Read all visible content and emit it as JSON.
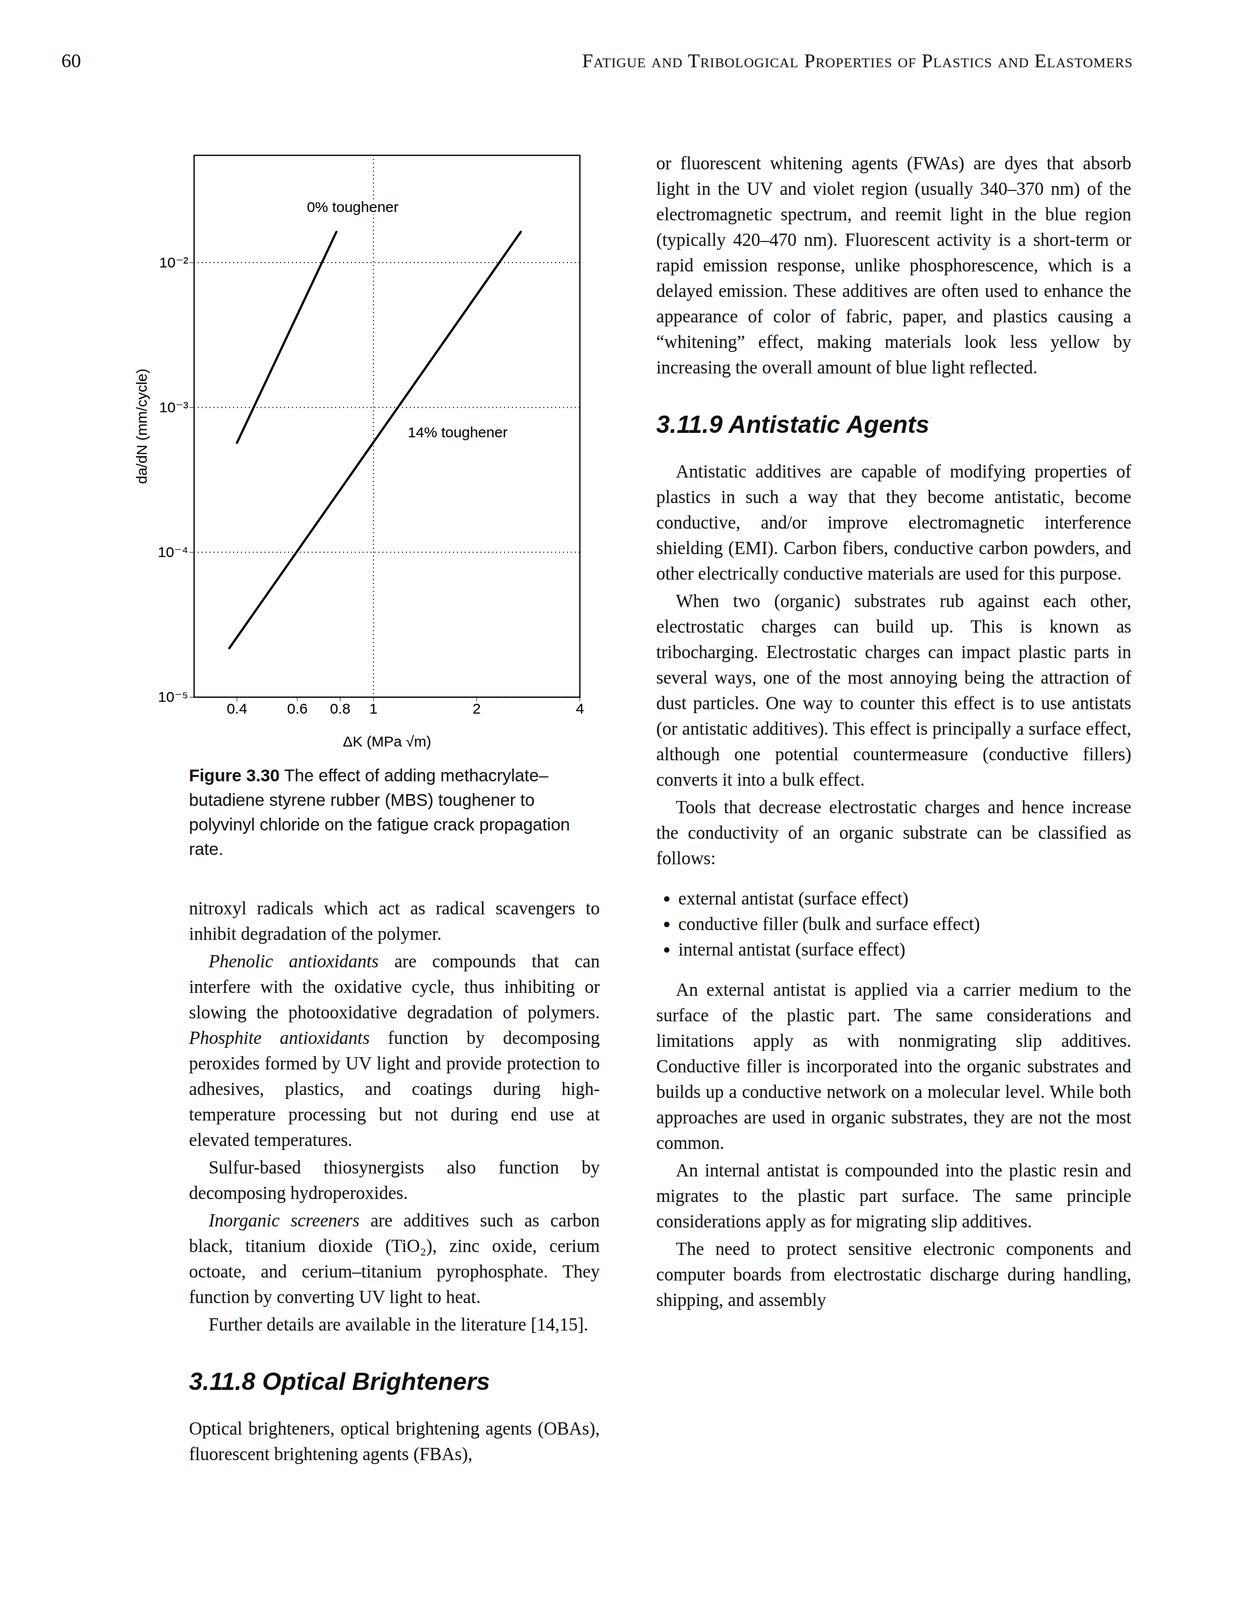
{
  "header": {
    "page_number": "60",
    "running_title": "Fatigue and Tribological Properties of Plastics and Elastomers"
  },
  "figure": {
    "label": "Figure 3.30",
    "caption": "The effect of adding methacrylate–butadiene styrene rubber (MBS) toughener to polyvinyl chloride on the fatigue crack propagation rate."
  },
  "chart_data": {
    "type": "line",
    "xlabel": "ΔK (MPa √m)",
    "ylabel": "da/dN (mm/cycle)",
    "log": true,
    "grid": "y",
    "vlines": [
      1
    ],
    "xlim": [
      0.3,
      4
    ],
    "xticks": [
      0.4,
      0.6,
      0.8,
      1,
      2,
      4
    ],
    "ylim": [
      1e-05,
      0.055
    ],
    "yticks": [
      {
        "value": 1e-05,
        "label": "10⁻⁵"
      },
      {
        "value": 0.0001,
        "label": "10⁻⁴"
      },
      {
        "value": 0.001,
        "label": "10⁻³"
      },
      {
        "value": 0.01,
        "label": "10⁻²"
      }
    ],
    "series": [
      {
        "name": "0% toughener",
        "color": "#000000",
        "x": [
          0.4,
          0.78
        ],
        "values": [
          0.00057,
          0.0163
        ]
      },
      {
        "name": "14% toughener",
        "color": "#000000",
        "x": [
          0.38,
          2.69
        ],
        "values": [
          2.18e-05,
          0.0163
        ]
      }
    ],
    "annotations": [
      {
        "text": "0% toughener",
        "x": 0.87,
        "y": 0.024
      },
      {
        "text": "14% toughener",
        "x": 1.76,
        "y": 0.00067
      }
    ]
  },
  "left_column": [
    {
      "type": "paragraph",
      "indent": false,
      "runs": [
        {
          "text": "nitroxyl radicals which act as radical scavengers to inhibit degradation of the polymer.",
          "italic": false
        }
      ]
    },
    {
      "type": "paragraph",
      "indent": true,
      "runs": [
        {
          "text": "Phenolic antioxidants",
          "italic": true
        },
        {
          "text": " are compounds that can interfere with the oxidative cycle, thus inhibiting or slowing the photooxidative degradation of polymers. ",
          "italic": false
        },
        {
          "text": "Phosphite antioxidants",
          "italic": true
        },
        {
          "text": " function by decomposing peroxides formed by UV light and provide protection to adhesives, plastics, and coatings during high-temperature processing but not during end use at elevated temperatures.",
          "italic": false
        }
      ]
    },
    {
      "type": "paragraph",
      "indent": true,
      "runs": [
        {
          "text": "Sulfur-based thiosynergists also function by decomposing hydroperoxides.",
          "italic": false
        }
      ]
    },
    {
      "type": "paragraph",
      "indent": true,
      "runs": [
        {
          "text": "Inorganic screeners",
          "italic": true
        },
        {
          "text": " are additives such as carbon black, titanium dioxide (TiO₂), zinc oxide, cerium octoate, and cerium–titanium pyrophosphate. They function by converting UV light to heat.",
          "italic": false
        }
      ]
    },
    {
      "type": "paragraph",
      "indent": true,
      "runs": [
        {
          "text": "Further details are available in the literature [14,15].",
          "italic": false
        }
      ]
    },
    {
      "type": "heading",
      "text": "3.11.8 Optical Brighteners"
    },
    {
      "type": "paragraph",
      "indent": false,
      "runs": [
        {
          "text": "Optical brighteners, optical brightening agents (OBAs), fluorescent brightening agents (FBAs),",
          "italic": false
        }
      ]
    }
  ],
  "right_column": [
    {
      "type": "paragraph",
      "indent": false,
      "runs": [
        {
          "text": "or fluorescent whitening agents (FWAs) are dyes that absorb light in the UV and violet region (usually 340–370 nm) of the electromagnetic spectrum, and reemit light in the blue region (typically 420–470 nm). Fluorescent activity is a short-term or rapid emission response, unlike phosphorescence, which is a delayed emission. These additives are often used to enhance the appearance of color of fabric, paper, and plastics causing a “whitening” effect, making materials look less yellow by increasing the overall amount of blue light reflected.",
          "italic": false
        }
      ]
    },
    {
      "type": "heading",
      "text": "3.11.9 Antistatic Agents"
    },
    {
      "type": "paragraph",
      "indent": true,
      "runs": [
        {
          "text": "Antistatic additives are capable of modifying properties of plastics in such a way that they become antistatic, become conductive, and/or improve electromagnetic interference shielding (EMI). Carbon fibers, conductive carbon powders, and other electrically conductive materials are used for this purpose.",
          "italic": false
        }
      ]
    },
    {
      "type": "paragraph",
      "indent": true,
      "runs": [
        {
          "text": "When two (organic) substrates rub against each other, electrostatic charges can build up. This is known as tribocharging. Electrostatic charges can impact plastic parts in several ways, one of the most annoying being the attraction of dust particles. One way to counter this effect is to use antistats (or antistatic additives). This effect is principally a surface effect, although one potential countermeasure (conductive fillers) converts it into a bulk effect.",
          "italic": false
        }
      ]
    },
    {
      "type": "paragraph",
      "indent": true,
      "runs": [
        {
          "text": "Tools that decrease electrostatic charges and hence increase the conductivity of an organic substrate can be classified as follows:",
          "italic": false
        }
      ]
    },
    {
      "type": "list",
      "items": [
        "external antistat (surface effect)",
        "conductive filler (bulk and surface effect)",
        "internal antistat (surface effect)"
      ]
    },
    {
      "type": "paragraph",
      "indent": true,
      "runs": [
        {
          "text": "An external antistat is applied via a carrier medium to the surface of the plastic part. The same considerations and limitations apply as with nonmigrating slip additives. Conductive filler is incorporated into the organic substrates and builds up a conductive network on a molecular level. While both approaches are used in organic substrates, they are not the most common.",
          "italic": false
        }
      ]
    },
    {
      "type": "paragraph",
      "indent": true,
      "runs": [
        {
          "text": "An internal antistat is compounded into the plastic resin and migrates to the plastic part surface. The same principle considerations apply as for migrating slip additives.",
          "italic": false
        }
      ]
    },
    {
      "type": "paragraph",
      "indent": true,
      "runs": [
        {
          "text": "The need to protect sensitive electronic components and computer boards from electrostatic discharge during handling, shipping, and assembly",
          "italic": false
        }
      ]
    }
  ]
}
